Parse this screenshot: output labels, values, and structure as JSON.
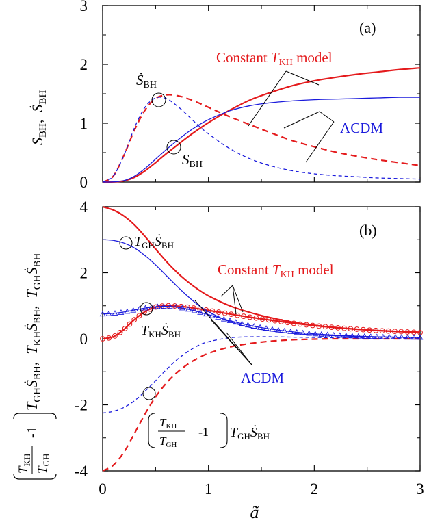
{
  "figure": {
    "x_axis_label": "ã",
    "x_ticks": [
      "0",
      "1",
      "2",
      "3"
    ]
  },
  "chart_data": [
    {
      "panel": "a",
      "panel_label": "(a)",
      "type": "line",
      "xlim": [
        0,
        3
      ],
      "ylim": [
        0,
        3
      ],
      "y_ticks": [
        "0",
        "1",
        "2",
        "3"
      ],
      "y_axis_label": {
        "a": "S",
        "a_sub": "BH",
        "sep": ",  ",
        "b": "Ṡ",
        "b_sub": "BH"
      },
      "legend": {
        "constant_label": {
          "pre": "Constant ",
          "T": "T",
          "sub": "KH",
          "post": " model"
        },
        "lcdm_label": "ΛCDM"
      },
      "annotations": {
        "sdot_label": {
          "S": "Ṡ",
          "sub": "BH"
        },
        "s_label": {
          "S": "S",
          "sub": "BH"
        }
      },
      "colors": {
        "constant": "#e41a1c",
        "lcdm": "#1a1adc"
      },
      "series": [
        {
          "model": "constant",
          "quantity": "S_BH",
          "style": "solid",
          "x": [
            0,
            0.1,
            0.2,
            0.3,
            0.4,
            0.5,
            0.6,
            0.7,
            0.8,
            0.9,
            1.0,
            1.2,
            1.4,
            1.6,
            1.8,
            2.0,
            2.2,
            2.4,
            2.6,
            2.8,
            3.0
          ],
          "y": [
            0,
            0.003,
            0.02,
            0.08,
            0.19,
            0.33,
            0.48,
            0.62,
            0.76,
            0.89,
            1.01,
            1.22,
            1.4,
            1.53,
            1.64,
            1.72,
            1.78,
            1.83,
            1.87,
            1.91,
            1.94
          ]
        },
        {
          "model": "constant",
          "quantity": "Sdot_BH",
          "style": "dashed",
          "x": [
            0,
            0.1,
            0.2,
            0.3,
            0.4,
            0.5,
            0.6,
            0.7,
            0.8,
            0.9,
            1.0,
            1.2,
            1.4,
            1.6,
            1.8,
            2.0,
            2.2,
            2.4,
            2.6,
            2.8,
            3.0
          ],
          "y": [
            0,
            0.1,
            0.45,
            0.88,
            1.22,
            1.42,
            1.48,
            1.47,
            1.42,
            1.35,
            1.27,
            1.11,
            0.97,
            0.83,
            0.7,
            0.6,
            0.51,
            0.44,
            0.38,
            0.33,
            0.28
          ]
        },
        {
          "model": "lcdm",
          "quantity": "S_BH",
          "style": "solid",
          "x": [
            0,
            0.1,
            0.2,
            0.3,
            0.4,
            0.5,
            0.6,
            0.7,
            0.8,
            0.9,
            1.0,
            1.2,
            1.4,
            1.6,
            1.8,
            2.0,
            2.2,
            2.4,
            2.6,
            2.8,
            3.0
          ],
          "y": [
            0,
            0.003,
            0.025,
            0.1,
            0.23,
            0.39,
            0.55,
            0.7,
            0.84,
            0.96,
            1.06,
            1.21,
            1.3,
            1.35,
            1.38,
            1.4,
            1.41,
            1.42,
            1.43,
            1.44,
            1.44
          ]
        },
        {
          "model": "lcdm",
          "quantity": "Sdot_BH",
          "style": "dashed",
          "x": [
            0,
            0.1,
            0.2,
            0.3,
            0.4,
            0.5,
            0.6,
            0.7,
            0.8,
            0.9,
            1.0,
            1.2,
            1.4,
            1.6,
            1.8,
            2.0,
            2.2,
            2.4,
            2.6,
            2.8,
            3.0
          ],
          "y": [
            0,
            0.1,
            0.45,
            0.92,
            1.27,
            1.43,
            1.42,
            1.3,
            1.14,
            0.97,
            0.82,
            0.57,
            0.39,
            0.27,
            0.19,
            0.14,
            0.11,
            0.09,
            0.07,
            0.06,
            0.05
          ]
        }
      ]
    },
    {
      "panel": "b",
      "panel_label": "(b)",
      "type": "line",
      "xlim": [
        0,
        3
      ],
      "ylim": [
        -4,
        4
      ],
      "y_ticks": [
        "-4",
        "-2",
        "0",
        "2",
        "4"
      ],
      "y_axis_label": {
        "paren_open": "(",
        "frac_num": "T",
        "frac_num_sub": "KH",
        "frac_den": "T",
        "frac_den_sub": "GH",
        "minus_one": "-1",
        "paren_close": ")",
        "t1": "T",
        "t1_sub": "GH",
        "s1": "Ṡ",
        "s1_sub": "BH",
        "sep": ",  ",
        "t2": "T",
        "t2_sub": "KH",
        "s2": "Ṡ",
        "s2_sub": "BH",
        "t3": "T",
        "t3_sub": "GH",
        "s3": "Ṡ",
        "s3_sub": "BH"
      },
      "legend": {
        "constant_label": {
          "pre": "Constant ",
          "T": "T",
          "sub": "KH",
          "post": " model"
        },
        "lcdm_label": "ΛCDM"
      },
      "annotations": {
        "tgh_label": {
          "T": "T",
          "sub1": "GH",
          "S": "Ṡ",
          "sub2": "BH"
        },
        "tkh_label": {
          "T": "T",
          "sub1": "KH",
          "S": "Ṡ",
          "sub2": "BH"
        },
        "diff_label": {
          "num": "T",
          "num_sub": "KH",
          "den": "T",
          "den_sub": "GH",
          "minus_one": "-1",
          "T": "T",
          "T_sub": "GH",
          "S": "Ṡ",
          "S_sub": "BH"
        }
      },
      "colors": {
        "constant": "#e41a1c",
        "lcdm": "#1a1adc"
      },
      "series": [
        {
          "model": "constant",
          "quantity": "T_GH Sdot_BH",
          "style": "solid",
          "x": [
            0,
            0.1,
            0.2,
            0.3,
            0.4,
            0.5,
            0.6,
            0.7,
            0.8,
            0.9,
            1.0,
            1.2,
            1.4,
            1.6,
            1.8,
            2.0,
            2.2,
            2.4,
            2.6,
            2.8,
            3.0
          ],
          "y": [
            4.0,
            3.9,
            3.72,
            3.45,
            3.1,
            2.72,
            2.35,
            2.02,
            1.74,
            1.5,
            1.3,
            1.0,
            0.79,
            0.63,
            0.5,
            0.41,
            0.34,
            0.29,
            0.25,
            0.22,
            0.2
          ]
        },
        {
          "model": "constant",
          "quantity": "T_KH Sdot_BH",
          "style": "solid-circles",
          "x": [
            0,
            0.1,
            0.2,
            0.3,
            0.4,
            0.5,
            0.6,
            0.7,
            0.8,
            0.9,
            1.0,
            1.2,
            1.4,
            1.6,
            1.8,
            2.0,
            2.2,
            2.4,
            2.6,
            2.8,
            3.0
          ],
          "y": [
            0,
            0.06,
            0.28,
            0.58,
            0.82,
            0.96,
            1.0,
            0.99,
            0.96,
            0.91,
            0.86,
            0.75,
            0.65,
            0.56,
            0.47,
            0.4,
            0.34,
            0.29,
            0.25,
            0.22,
            0.19
          ]
        },
        {
          "model": "constant",
          "quantity": "(T_KH/T_GH - 1) T_GH Sdot_BH",
          "style": "dashed",
          "x": [
            0,
            0.1,
            0.2,
            0.3,
            0.4,
            0.5,
            0.6,
            0.7,
            0.8,
            0.9,
            1.0,
            1.2,
            1.4,
            1.6,
            1.8,
            2.0,
            2.2,
            2.4,
            2.6,
            2.8,
            3.0
          ],
          "y": [
            -4.0,
            -3.83,
            -3.44,
            -2.87,
            -2.28,
            -1.76,
            -1.35,
            -1.03,
            -0.78,
            -0.59,
            -0.44,
            -0.25,
            -0.14,
            -0.07,
            -0.03,
            -0.01,
            0.0,
            0.0,
            0.0,
            0.0,
            0.0
          ]
        },
        {
          "model": "lcdm",
          "quantity": "T_GH Sdot_BH",
          "style": "solid",
          "x": [
            0,
            0.1,
            0.2,
            0.3,
            0.4,
            0.5,
            0.6,
            0.7,
            0.8,
            0.9,
            1.0,
            1.2,
            1.4,
            1.6,
            1.8,
            2.0,
            2.2,
            2.4,
            2.6,
            2.8,
            3.0
          ],
          "y": [
            3.0,
            2.98,
            2.9,
            2.75,
            2.52,
            2.24,
            1.92,
            1.6,
            1.3,
            1.03,
            0.82,
            0.52,
            0.34,
            0.23,
            0.16,
            0.12,
            0.09,
            0.07,
            0.06,
            0.05,
            0.04
          ]
        },
        {
          "model": "lcdm",
          "quantity": "T_KH Sdot_BH",
          "style": "solid-triangles",
          "x": [
            0,
            0.1,
            0.2,
            0.3,
            0.4,
            0.5,
            0.6,
            0.7,
            0.8,
            0.9,
            1.0,
            1.2,
            1.4,
            1.6,
            1.8,
            2.0,
            2.2,
            2.4,
            2.6,
            2.8,
            3.0
          ],
          "y": [
            0.75,
            0.77,
            0.81,
            0.87,
            0.93,
            0.97,
            0.98,
            0.96,
            0.9,
            0.82,
            0.73,
            0.55,
            0.4,
            0.29,
            0.21,
            0.15,
            0.11,
            0.08,
            0.06,
            0.05,
            0.04
          ]
        },
        {
          "model": "lcdm",
          "quantity": "(T_KH/T_GH - 1) T_GH Sdot_BH",
          "style": "dashed",
          "x": [
            0,
            0.1,
            0.2,
            0.3,
            0.4,
            0.5,
            0.6,
            0.7,
            0.8,
            0.9,
            1.0,
            1.2,
            1.4,
            1.6,
            1.8,
            2.0,
            2.2,
            2.4,
            2.6,
            2.8,
            3.0
          ],
          "y": [
            -2.25,
            -2.2,
            -2.08,
            -1.88,
            -1.59,
            -1.27,
            -0.94,
            -0.64,
            -0.4,
            -0.21,
            -0.09,
            0.03,
            0.06,
            0.06,
            0.05,
            0.04,
            0.03,
            0.03,
            0.02,
            0.02,
            0.02
          ]
        }
      ]
    }
  ]
}
